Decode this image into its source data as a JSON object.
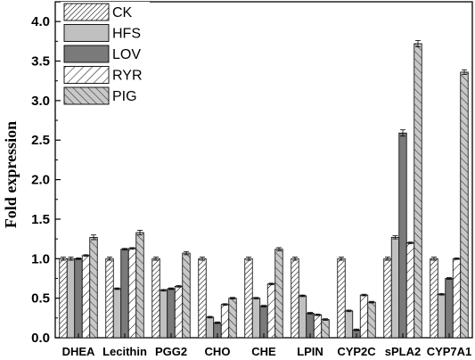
{
  "chart_data": {
    "type": "bar",
    "title": "",
    "xlabel": "",
    "ylabel": "Fold expression",
    "ylim": [
      0,
      4.25
    ],
    "yticks": [
      "0.0",
      "0.5",
      "1.0",
      "1.5",
      "2.0",
      "2.5",
      "3.0",
      "3.5",
      "4.0"
    ],
    "grid": false,
    "legend_position": "top-left",
    "categories": [
      "DHEA",
      "Lecithin",
      "PGG2",
      "CHO",
      "CHE",
      "LPIN",
      "CYP2C",
      "sPLA2",
      "CYP7A1"
    ],
    "series": [
      {
        "name": "CK",
        "fill": "#ffffff",
        "pattern": "hatch-forward",
        "values": [
          1.0,
          1.0,
          1.0,
          1.0,
          1.0,
          1.0,
          1.0,
          1.0,
          1.0
        ],
        "errors": [
          0.02,
          0.02,
          0.02,
          0.02,
          0.02,
          0.02,
          0.02,
          0.02,
          0.02
        ]
      },
      {
        "name": "HFS",
        "fill": "#c0c0c0",
        "pattern": "solid",
        "values": [
          1.0,
          0.62,
          0.6,
          0.26,
          0.5,
          0.53,
          0.34,
          1.27,
          0.55
        ],
        "errors": [
          0.02,
          0.01,
          0.01,
          0.01,
          0.01,
          0.01,
          0.01,
          0.02,
          0.01
        ]
      },
      {
        "name": "LOV",
        "fill": "#7a7a7a",
        "pattern": "solid",
        "values": [
          1.0,
          1.12,
          0.62,
          0.19,
          0.4,
          0.31,
          0.1,
          2.59,
          0.75
        ],
        "errors": [
          0.01,
          0.01,
          0.01,
          0.01,
          0.01,
          0.01,
          0.01,
          0.04,
          0.01
        ]
      },
      {
        "name": "RYR",
        "fill": "#ffffff",
        "pattern": "hatch-wide",
        "values": [
          1.04,
          1.13,
          0.65,
          0.42,
          0.68,
          0.29,
          0.54,
          1.2,
          1.0
        ],
        "errors": [
          0.01,
          0.01,
          0.01,
          0.01,
          0.01,
          0.01,
          0.01,
          0.01,
          0.01
        ]
      },
      {
        "name": "PIG",
        "fill": "#c8c8c8",
        "pattern": "hatch-back",
        "values": [
          1.27,
          1.33,
          1.07,
          0.5,
          1.12,
          0.23,
          0.45,
          3.72,
          3.36
        ],
        "errors": [
          0.03,
          0.03,
          0.02,
          0.01,
          0.02,
          0.01,
          0.01,
          0.04,
          0.03
        ]
      }
    ]
  }
}
